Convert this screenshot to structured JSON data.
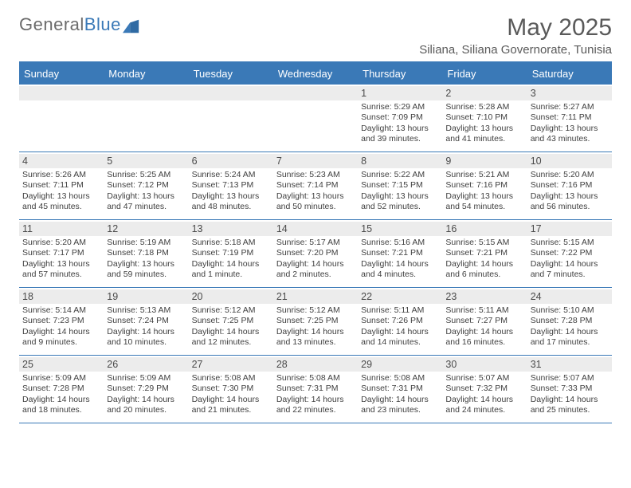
{
  "brand": {
    "part1": "General",
    "part2": "Blue"
  },
  "title": "May 2025",
  "location": "Siliana, Siliana Governorate, Tunisia",
  "colors": {
    "accent": "#3a79b7",
    "header_bg": "#3a79b7",
    "header_text": "#ffffff",
    "daynum_bg": "#ececec",
    "text": "#3f3f3f",
    "title_text": "#5a5a5a",
    "page_bg": "#ffffff"
  },
  "day_labels": [
    "Sunday",
    "Monday",
    "Tuesday",
    "Wednesday",
    "Thursday",
    "Friday",
    "Saturday"
  ],
  "weeks": [
    [
      {
        "n": "",
        "sr": "",
        "ss": "",
        "dl": ""
      },
      {
        "n": "",
        "sr": "",
        "ss": "",
        "dl": ""
      },
      {
        "n": "",
        "sr": "",
        "ss": "",
        "dl": ""
      },
      {
        "n": "",
        "sr": "",
        "ss": "",
        "dl": ""
      },
      {
        "n": "1",
        "sr": "Sunrise: 5:29 AM",
        "ss": "Sunset: 7:09 PM",
        "dl": "Daylight: 13 hours and 39 minutes."
      },
      {
        "n": "2",
        "sr": "Sunrise: 5:28 AM",
        "ss": "Sunset: 7:10 PM",
        "dl": "Daylight: 13 hours and 41 minutes."
      },
      {
        "n": "3",
        "sr": "Sunrise: 5:27 AM",
        "ss": "Sunset: 7:11 PM",
        "dl": "Daylight: 13 hours and 43 minutes."
      }
    ],
    [
      {
        "n": "4",
        "sr": "Sunrise: 5:26 AM",
        "ss": "Sunset: 7:11 PM",
        "dl": "Daylight: 13 hours and 45 minutes."
      },
      {
        "n": "5",
        "sr": "Sunrise: 5:25 AM",
        "ss": "Sunset: 7:12 PM",
        "dl": "Daylight: 13 hours and 47 minutes."
      },
      {
        "n": "6",
        "sr": "Sunrise: 5:24 AM",
        "ss": "Sunset: 7:13 PM",
        "dl": "Daylight: 13 hours and 48 minutes."
      },
      {
        "n": "7",
        "sr": "Sunrise: 5:23 AM",
        "ss": "Sunset: 7:14 PM",
        "dl": "Daylight: 13 hours and 50 minutes."
      },
      {
        "n": "8",
        "sr": "Sunrise: 5:22 AM",
        "ss": "Sunset: 7:15 PM",
        "dl": "Daylight: 13 hours and 52 minutes."
      },
      {
        "n": "9",
        "sr": "Sunrise: 5:21 AM",
        "ss": "Sunset: 7:16 PM",
        "dl": "Daylight: 13 hours and 54 minutes."
      },
      {
        "n": "10",
        "sr": "Sunrise: 5:20 AM",
        "ss": "Sunset: 7:16 PM",
        "dl": "Daylight: 13 hours and 56 minutes."
      }
    ],
    [
      {
        "n": "11",
        "sr": "Sunrise: 5:20 AM",
        "ss": "Sunset: 7:17 PM",
        "dl": "Daylight: 13 hours and 57 minutes."
      },
      {
        "n": "12",
        "sr": "Sunrise: 5:19 AM",
        "ss": "Sunset: 7:18 PM",
        "dl": "Daylight: 13 hours and 59 minutes."
      },
      {
        "n": "13",
        "sr": "Sunrise: 5:18 AM",
        "ss": "Sunset: 7:19 PM",
        "dl": "Daylight: 14 hours and 1 minute."
      },
      {
        "n": "14",
        "sr": "Sunrise: 5:17 AM",
        "ss": "Sunset: 7:20 PM",
        "dl": "Daylight: 14 hours and 2 minutes."
      },
      {
        "n": "15",
        "sr": "Sunrise: 5:16 AM",
        "ss": "Sunset: 7:21 PM",
        "dl": "Daylight: 14 hours and 4 minutes."
      },
      {
        "n": "16",
        "sr": "Sunrise: 5:15 AM",
        "ss": "Sunset: 7:21 PM",
        "dl": "Daylight: 14 hours and 6 minutes."
      },
      {
        "n": "17",
        "sr": "Sunrise: 5:15 AM",
        "ss": "Sunset: 7:22 PM",
        "dl": "Daylight: 14 hours and 7 minutes."
      }
    ],
    [
      {
        "n": "18",
        "sr": "Sunrise: 5:14 AM",
        "ss": "Sunset: 7:23 PM",
        "dl": "Daylight: 14 hours and 9 minutes."
      },
      {
        "n": "19",
        "sr": "Sunrise: 5:13 AM",
        "ss": "Sunset: 7:24 PM",
        "dl": "Daylight: 14 hours and 10 minutes."
      },
      {
        "n": "20",
        "sr": "Sunrise: 5:12 AM",
        "ss": "Sunset: 7:25 PM",
        "dl": "Daylight: 14 hours and 12 minutes."
      },
      {
        "n": "21",
        "sr": "Sunrise: 5:12 AM",
        "ss": "Sunset: 7:25 PM",
        "dl": "Daylight: 14 hours and 13 minutes."
      },
      {
        "n": "22",
        "sr": "Sunrise: 5:11 AM",
        "ss": "Sunset: 7:26 PM",
        "dl": "Daylight: 14 hours and 14 minutes."
      },
      {
        "n": "23",
        "sr": "Sunrise: 5:11 AM",
        "ss": "Sunset: 7:27 PM",
        "dl": "Daylight: 14 hours and 16 minutes."
      },
      {
        "n": "24",
        "sr": "Sunrise: 5:10 AM",
        "ss": "Sunset: 7:28 PM",
        "dl": "Daylight: 14 hours and 17 minutes."
      }
    ],
    [
      {
        "n": "25",
        "sr": "Sunrise: 5:09 AM",
        "ss": "Sunset: 7:28 PM",
        "dl": "Daylight: 14 hours and 18 minutes."
      },
      {
        "n": "26",
        "sr": "Sunrise: 5:09 AM",
        "ss": "Sunset: 7:29 PM",
        "dl": "Daylight: 14 hours and 20 minutes."
      },
      {
        "n": "27",
        "sr": "Sunrise: 5:08 AM",
        "ss": "Sunset: 7:30 PM",
        "dl": "Daylight: 14 hours and 21 minutes."
      },
      {
        "n": "28",
        "sr": "Sunrise: 5:08 AM",
        "ss": "Sunset: 7:31 PM",
        "dl": "Daylight: 14 hours and 22 minutes."
      },
      {
        "n": "29",
        "sr": "Sunrise: 5:08 AM",
        "ss": "Sunset: 7:31 PM",
        "dl": "Daylight: 14 hours and 23 minutes."
      },
      {
        "n": "30",
        "sr": "Sunrise: 5:07 AM",
        "ss": "Sunset: 7:32 PM",
        "dl": "Daylight: 14 hours and 24 minutes."
      },
      {
        "n": "31",
        "sr": "Sunrise: 5:07 AM",
        "ss": "Sunset: 7:33 PM",
        "dl": "Daylight: 14 hours and 25 minutes."
      }
    ]
  ]
}
